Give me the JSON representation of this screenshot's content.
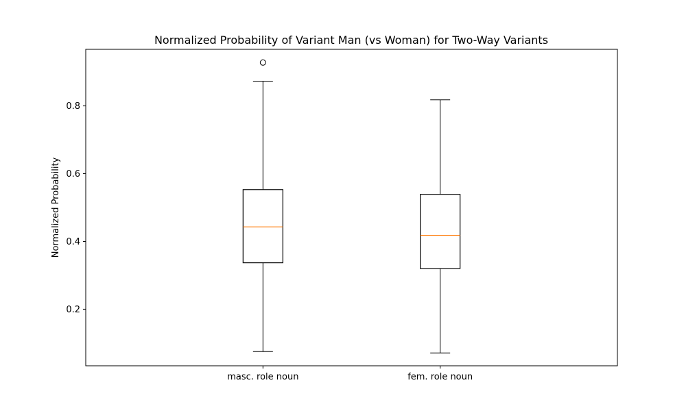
{
  "chart_data": {
    "type": "box",
    "title": "Normalized Probability of Variant Man (vs Woman) for Two-Way Variants",
    "xlabel": "",
    "ylabel": "Normalized Probability",
    "categories": [
      "masc. role noun",
      "fem. role noun"
    ],
    "ylim": [
      0.033,
      0.967
    ],
    "yticks": [
      0.2,
      0.4,
      0.6,
      0.8
    ],
    "ytick_labels": [
      "0.2",
      "0.4",
      "0.6",
      "0.8"
    ],
    "grid": false,
    "boxes": [
      {
        "category": "masc. role noun",
        "whisker_low": 0.075,
        "q1": 0.337,
        "median": 0.443,
        "q3": 0.553,
        "whisker_high": 0.873,
        "outliers": [
          0.928
        ]
      },
      {
        "category": "fem. role noun",
        "whisker_low": 0.071,
        "q1": 0.32,
        "median": 0.418,
        "q3": 0.539,
        "whisker_high": 0.818,
        "outliers": []
      }
    ],
    "colors": {
      "box": "#000000",
      "median": "#ff7f0e",
      "background": "#ffffff"
    }
  }
}
